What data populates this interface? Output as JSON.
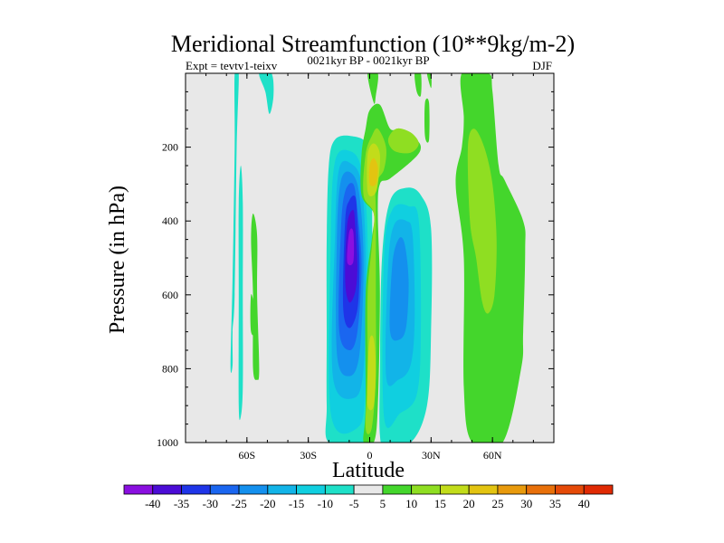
{
  "chart_data": {
    "type": "filled-contour",
    "title": "Meridional Streamfunction (10**9kg/m-2)",
    "subtitle_left": "Expt = tevtv1-teixv",
    "subtitle_center": "0021kyr BP - 0021kyr BP",
    "subtitle_right": "DJF",
    "xlabel": "Latitude",
    "ylabel": "Pressure (in hPa)",
    "xlim": [
      -90,
      90
    ],
    "ylim": [
      1000,
      0
    ],
    "x_ticks": [
      {
        "value": -60,
        "label": "60S"
      },
      {
        "value": -30,
        "label": "30S"
      },
      {
        "value": 0,
        "label": "0"
      },
      {
        "value": 30,
        "label": "30N"
      },
      {
        "value": 60,
        "label": "60N"
      }
    ],
    "y_ticks": [
      {
        "value": 200,
        "label": "200"
      },
      {
        "value": 400,
        "label": "400"
      },
      {
        "value": 600,
        "label": "600"
      },
      {
        "value": 800,
        "label": "800"
      },
      {
        "value": 1000,
        "label": "1000"
      }
    ],
    "colorbar": {
      "levels": [
        -40,
        -35,
        -30,
        -25,
        -20,
        -15,
        -10,
        -5,
        5,
        10,
        15,
        20,
        25,
        30,
        35,
        40
      ],
      "colors": [
        "#8a0fe0",
        "#4b0cd6",
        "#1f35e8",
        "#1a66f0",
        "#1490ee",
        "#12b4e8",
        "#10cfe0",
        "#1ee0c8",
        "#e8e8e8",
        "#44d62c",
        "#8fde22",
        "#c2dc1a",
        "#e3c411",
        "#e89a0c",
        "#e8700a",
        "#e54a08",
        "#e02a04"
      ]
    },
    "background_color": "#e8e8e8",
    "contours": [
      {
        "name": "sh-cell-outer",
        "value": -5,
        "points": [
          [
            -20,
            1000
          ],
          [
            -21,
            900
          ],
          [
            -21,
            700
          ],
          [
            -21,
            450
          ],
          [
            -20,
            250
          ],
          [
            -17,
            180
          ],
          [
            -9,
            170
          ],
          [
            -1,
            195
          ],
          [
            1,
            300
          ],
          [
            1,
            600
          ],
          [
            -1,
            850
          ],
          [
            -3,
            1000
          ]
        ]
      },
      {
        "name": "sh-cell-10",
        "value": -10,
        "points": [
          [
            -19,
            920
          ],
          [
            -19,
            450
          ],
          [
            -17,
            240
          ],
          [
            -10,
            210
          ],
          [
            -4,
            260
          ],
          [
            -1,
            450
          ],
          [
            -2,
            850
          ],
          [
            -6,
            960
          ]
        ]
      },
      {
        "name": "sh-cell-15",
        "value": -15,
        "points": [
          [
            -18,
            820
          ],
          [
            -17,
            450
          ],
          [
            -15,
            260
          ],
          [
            -9,
            245
          ],
          [
            -4,
            300
          ],
          [
            -2,
            500
          ],
          [
            -3,
            800
          ],
          [
            -8,
            880
          ]
        ]
      },
      {
        "name": "sh-cell-20",
        "value": -20,
        "points": [
          [
            -16,
            760
          ],
          [
            -16,
            440
          ],
          [
            -14,
            290
          ],
          [
            -9,
            270
          ],
          [
            -5,
            330
          ],
          [
            -3,
            520
          ],
          [
            -5,
            760
          ],
          [
            -10,
            820
          ]
        ]
      },
      {
        "name": "sh-cell-25",
        "value": -25,
        "points": [
          [
            -15,
            690
          ],
          [
            -14,
            420
          ],
          [
            -12,
            320
          ],
          [
            -8,
            300
          ],
          [
            -6,
            370
          ],
          [
            -4,
            520
          ],
          [
            -6,
            700
          ],
          [
            -10,
            750
          ]
        ]
      },
      {
        "name": "sh-cell-30",
        "value": -30,
        "points": [
          [
            -13,
            630
          ],
          [
            -12,
            400
          ],
          [
            -10,
            345
          ],
          [
            -7,
            335
          ],
          [
            -6,
            400
          ],
          [
            -5,
            520
          ],
          [
            -6,
            640
          ],
          [
            -10,
            690
          ]
        ]
      },
      {
        "name": "sh-cell-35",
        "value": -35,
        "points": [
          [
            -12,
            560
          ],
          [
            -11,
            410
          ],
          [
            -8,
            370
          ],
          [
            -7,
            420
          ],
          [
            -6,
            520
          ],
          [
            -7,
            590
          ],
          [
            -10,
            620
          ]
        ]
      },
      {
        "name": "sh-cell-40",
        "value": -40,
        "points": [
          [
            -11,
            510
          ],
          [
            -10,
            430
          ],
          [
            -8,
            430
          ],
          [
            -8,
            510
          ]
        ]
      },
      {
        "name": "nh-cell-5",
        "value": -5,
        "points": [
          [
            5,
            980
          ],
          [
            5,
            800
          ],
          [
            6,
            500
          ],
          [
            10,
            345
          ],
          [
            18,
            310
          ],
          [
            25,
            330
          ],
          [
            30,
            420
          ],
          [
            30,
            700
          ],
          [
            28,
            900
          ],
          [
            20,
            1000
          ],
          [
            8,
            1000
          ]
        ]
      },
      {
        "name": "nh-cell-10",
        "value": -10,
        "points": [
          [
            7,
            930
          ],
          [
            7,
            500
          ],
          [
            11,
            370
          ],
          [
            19,
            360
          ],
          [
            24,
            400
          ],
          [
            25,
            700
          ],
          [
            23,
            870
          ],
          [
            15,
            920
          ]
        ]
      },
      {
        "name": "nh-cell-15",
        "value": -15,
        "points": [
          [
            8,
            820
          ],
          [
            9,
            520
          ],
          [
            12,
            410
          ],
          [
            18,
            400
          ],
          [
            21,
            440
          ],
          [
            22,
            660
          ],
          [
            20,
            790
          ],
          [
            14,
            830
          ]
        ]
      },
      {
        "name": "nh-cell-20",
        "value": -20,
        "points": [
          [
            10,
            700
          ],
          [
            11,
            520
          ],
          [
            14,
            450
          ],
          [
            17,
            460
          ],
          [
            19,
            560
          ],
          [
            18,
            680
          ],
          [
            15,
            720
          ]
        ]
      },
      {
        "name": "eq-plume-5",
        "value": 5,
        "points": [
          [
            -3,
            1000
          ],
          [
            -2,
            900
          ],
          [
            -2,
            600
          ],
          [
            1,
            450
          ],
          [
            2,
            380
          ],
          [
            -4,
            330
          ],
          [
            -4,
            220
          ],
          [
            -2,
            150
          ],
          [
            0,
            100
          ],
          [
            5,
            85
          ],
          [
            10,
            150
          ],
          [
            15,
            150
          ],
          [
            22,
            175
          ],
          [
            25,
            200
          ],
          [
            22,
            230
          ],
          [
            10,
            285
          ],
          [
            5,
            300
          ],
          [
            4,
            380
          ],
          [
            5,
            600
          ],
          [
            4,
            900
          ],
          [
            2,
            1000
          ]
        ]
      },
      {
        "name": "eq-plume-10",
        "value": 10,
        "points": [
          [
            -2,
            960
          ],
          [
            -1,
            820
          ],
          [
            -1,
            600
          ],
          [
            1,
            470
          ],
          [
            2,
            380
          ],
          [
            -3,
            330
          ],
          [
            -2,
            220
          ],
          [
            1,
            170
          ],
          [
            4,
            150
          ],
          [
            8,
            200
          ],
          [
            7,
            260
          ],
          [
            3,
            300
          ],
          [
            3,
            380
          ],
          [
            3,
            600
          ],
          [
            3,
            820
          ],
          [
            1,
            960
          ]
        ]
      },
      {
        "name": "eq-plume-15",
        "value": 15,
        "points": [
          [
            -1,
            900
          ],
          [
            -1,
            800
          ],
          [
            0,
            720
          ],
          [
            2,
            720
          ],
          [
            3,
            800
          ],
          [
            2,
            900
          ]
        ]
      },
      {
        "name": "eq-plume-15b",
        "value": 15,
        "points": [
          [
            -1,
            320
          ],
          [
            -1,
            220
          ],
          [
            2,
            190
          ],
          [
            5,
            220
          ],
          [
            4,
            300
          ],
          [
            2,
            330
          ]
        ]
      },
      {
        "name": "eq-plume-20",
        "value": 20,
        "points": [
          [
            0,
            300
          ],
          [
            0,
            250
          ],
          [
            2,
            230
          ],
          [
            4,
            255
          ],
          [
            3,
            300
          ]
        ]
      },
      {
        "name": "nh-tropo-arm",
        "value": 10,
        "points": [
          [
            9,
            180
          ],
          [
            13,
            150
          ],
          [
            20,
            160
          ],
          [
            24,
            190
          ],
          [
            20,
            215
          ],
          [
            12,
            210
          ]
        ]
      },
      {
        "name": "strat-band-1",
        "value": 5,
        "points": [
          [
            -1,
            0
          ],
          [
            4,
            0
          ],
          [
            3,
            60
          ],
          [
            2,
            80
          ]
        ]
      },
      {
        "name": "strat-band-2",
        "value": 5,
        "points": [
          [
            22,
            0
          ],
          [
            25,
            0
          ],
          [
            25,
            60
          ],
          [
            23,
            50
          ]
        ]
      },
      {
        "name": "strat-band-3",
        "value": 5,
        "points": [
          [
            28,
            0
          ],
          [
            30,
            0
          ],
          [
            30,
            40
          ]
        ]
      },
      {
        "name": "strat-band-4",
        "value": 5,
        "points": [
          [
            27,
            80
          ],
          [
            29,
            80
          ],
          [
            29,
            180
          ],
          [
            27,
            170
          ]
        ]
      },
      {
        "name": "nh-mid-5",
        "value": 5,
        "points": [
          [
            45,
            0
          ],
          [
            58,
            0
          ],
          [
            60,
            50
          ],
          [
            63,
            250
          ],
          [
            66,
            290
          ],
          [
            75,
            400
          ],
          [
            76,
            480
          ],
          [
            75,
            700
          ],
          [
            74,
            800
          ],
          [
            65,
            1000
          ],
          [
            50,
            1000
          ],
          [
            46,
            850
          ],
          [
            46,
            500
          ],
          [
            42,
            300
          ],
          [
            45,
            200
          ],
          [
            46,
            120
          ]
        ]
      },
      {
        "name": "nh-mid-10",
        "value": 10,
        "points": [
          [
            48,
            200
          ],
          [
            51,
            150
          ],
          [
            56,
            200
          ],
          [
            60,
            300
          ],
          [
            62,
            450
          ],
          [
            61,
            600
          ],
          [
            58,
            650
          ],
          [
            55,
            620
          ],
          [
            52,
            500
          ],
          [
            49,
            400
          ]
        ]
      },
      {
        "name": "sh-lat-5a",
        "value": -5,
        "points": [
          [
            -66,
            0
          ],
          [
            -64,
            0
          ],
          [
            -65,
            200
          ],
          [
            -66,
            600
          ],
          [
            -67,
            700
          ],
          [
            -67,
            790
          ],
          [
            -68,
            790
          ],
          [
            -67,
            550
          ],
          [
            -66,
            200
          ]
        ]
      },
      {
        "name": "sh-lat-5b",
        "value": -5,
        "points": [
          [
            -63,
            250
          ],
          [
            -62,
            350
          ],
          [
            -62,
            600
          ],
          [
            -62,
            850
          ],
          [
            -63,
            930
          ],
          [
            -64,
            900
          ],
          [
            -64,
            600
          ],
          [
            -64,
            350
          ]
        ]
      },
      {
        "name": "sh-lat-5c",
        "value": -5,
        "points": [
          [
            -54,
            0
          ],
          [
            -48,
            0
          ],
          [
            -47,
            60
          ],
          [
            -49,
            110
          ],
          [
            -51,
            50
          ]
        ]
      },
      {
        "name": "sh-lat-green",
        "value": 5,
        "points": [
          [
            -57,
            380
          ],
          [
            -55,
            440
          ],
          [
            -55,
            600
          ],
          [
            -54,
            800
          ],
          [
            -55,
            830
          ],
          [
            -57,
            800
          ],
          [
            -57,
            600
          ],
          [
            -58,
            450
          ]
        ]
      },
      {
        "name": "sh-lat-green-b",
        "value": 5,
        "points": [
          [
            -58,
            600
          ],
          [
            -56,
            640
          ],
          [
            -55,
            700
          ],
          [
            -58,
            700
          ]
        ]
      }
    ]
  }
}
